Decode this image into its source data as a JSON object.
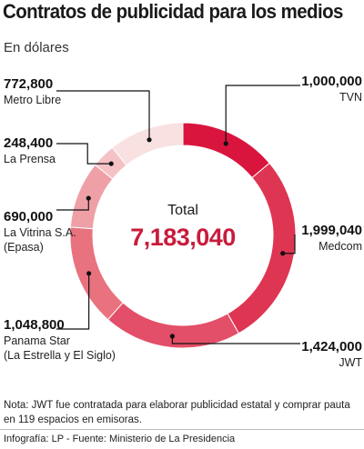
{
  "title": "Contratos de publicidad para los medios",
  "subtitle": "En dólares",
  "chart_data": {
    "type": "pie",
    "title": "Contratos de publicidad para los medios",
    "subtitle": "En dólares",
    "total_label": "Total",
    "total_value": "7,183,040",
    "slices": [
      {
        "name": "TVN",
        "value": 1000000,
        "value_label": "1,000,000",
        "label_lines": [
          "TVN"
        ],
        "color": "#d9153e"
      },
      {
        "name": "Medcom",
        "value": 1999040,
        "value_label": "1,999,040",
        "label_lines": [
          "Medcom"
        ],
        "color": "#de3553"
      },
      {
        "name": "JWT",
        "value": 1424000,
        "value_label": "1,424,000",
        "label_lines": [
          "JWT"
        ],
        "color": "#e34f68"
      },
      {
        "name": "Panama Star (La Estrella y El Siglo)",
        "value": 1048800,
        "value_label": "1,048,800",
        "label_lines": [
          "Panama Star",
          "(La Estrella y El Siglo)"
        ],
        "color": "#e9727f"
      },
      {
        "name": "La Vitrina S.A. (Epasa)",
        "value": 690000,
        "value_label": "690,000",
        "label_lines": [
          "La Vitrina S.A.",
          "(Epasa)"
        ],
        "color": "#eea0a6"
      },
      {
        "name": "La Prensa",
        "value": 248400,
        "value_label": "248,400",
        "label_lines": [
          "La Prensa"
        ],
        "color": "#f4c2c5"
      },
      {
        "name": "Metro Libre",
        "value": 772800,
        "value_label": "772,800",
        "label_lines": [
          "Metro Libre"
        ],
        "color": "#f9e1e1"
      }
    ]
  },
  "note": "Nota: JWT fue contratada para elaborar publicidad estatal y comprar pauta en 119 espacios en emisoras.",
  "credits": "Infografía: LP - Fuente: Ministerio de La Presidencia"
}
